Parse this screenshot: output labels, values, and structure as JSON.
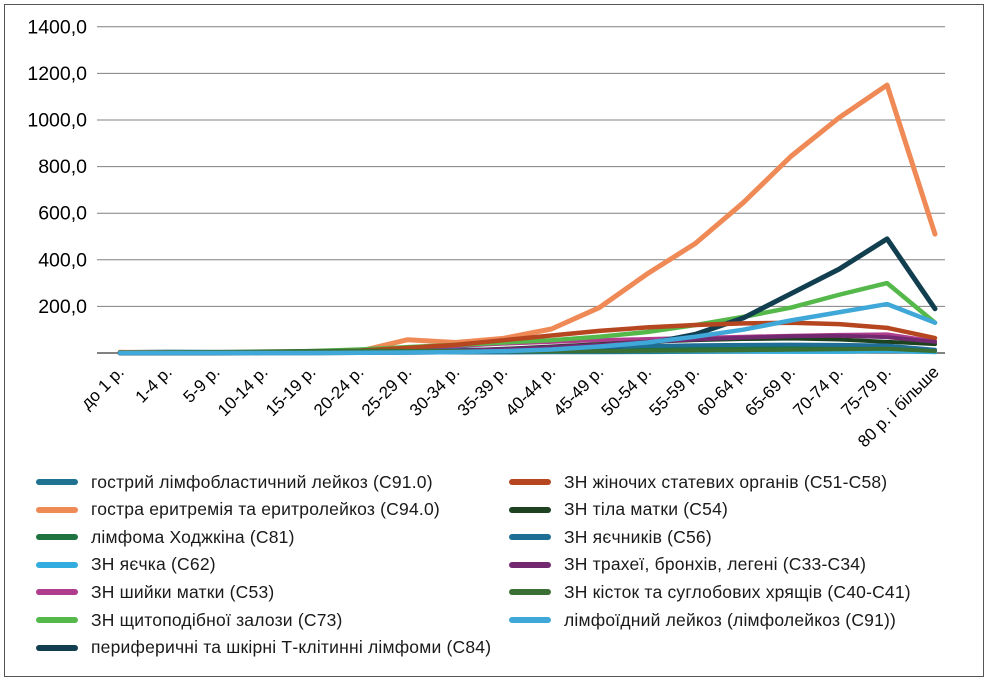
{
  "figure": {
    "kind": "multi-series line chart of incidence by age group",
    "background": "#ffffff",
    "frame_color": "#555555",
    "gridline_color": "#808080",
    "axis_color": "#595959"
  },
  "chart_data": {
    "type": "line",
    "title": "",
    "xlabel": "",
    "ylabel": "",
    "ylim": [
      0,
      1400
    ],
    "grid": "horizontal",
    "legend_position": "bottom-two-columns",
    "y_ticks": [
      {
        "value": 1400,
        "label": "1400,0"
      },
      {
        "value": 1200,
        "label": "1200,0"
      },
      {
        "value": 1000,
        "label": "1000,0"
      },
      {
        "value": 800,
        "label": "800,0"
      },
      {
        "value": 600,
        "label": "600,0"
      },
      {
        "value": 400,
        "label": "400,0"
      },
      {
        "value": 200,
        "label": "200,0"
      }
    ],
    "categories": [
      "до 1 р.",
      "1-4 р.",
      "5-9 р.",
      "10-14 р.",
      "15-19 р.",
      "20-24 р.",
      "25-29 р.",
      "30-34 р.",
      "35-39 р.",
      "40-44 р.",
      "45-49 р.",
      "50-54 р.",
      "55-59 р.",
      "60-64 р.",
      "65-69 р.",
      "70-74 р.",
      "75-79 р.",
      "80 р. і більше"
    ],
    "series": [
      {
        "name": "гострий лімфобластичний лейкоз (С91.0)",
        "color": "#1F7391",
        "width": 4,
        "values": [
          4,
          6,
          5,
          3,
          3,
          3,
          2,
          2,
          2,
          3,
          3,
          4,
          5,
          6,
          7,
          8,
          10,
          5
        ]
      },
      {
        "name": "гостра еритремія та еритролейкоз (С94.0)",
        "color": "#EF8A57",
        "width": 5,
        "values": [
          3,
          2,
          2,
          2,
          3,
          8,
          57,
          45,
          63,
          103,
          195,
          340,
          470,
          645,
          845,
          1010,
          1150,
          510
        ]
      },
      {
        "name": "лімфома Ходжкіна (С81)",
        "color": "#1E7340",
        "width": 4,
        "values": [
          2,
          2,
          3,
          4,
          8,
          12,
          14,
          15,
          14,
          13,
          14,
          15,
          17,
          19,
          21,
          22,
          18,
          9
        ]
      },
      {
        "name": "ЗН яєчка (С62)",
        "color": "#33ADE0",
        "width": 4,
        "values": [
          1,
          2,
          2,
          3,
          6,
          12,
          15,
          14,
          12,
          10,
          9,
          8,
          7,
          6,
          5,
          5,
          8,
          3
        ]
      },
      {
        "name": "ЗН шийки матки (С53)",
        "color": "#B03C8E",
        "width": 4,
        "values": [
          0,
          0,
          0,
          1,
          3,
          10,
          20,
          30,
          40,
          48,
          55,
          60,
          65,
          70,
          74,
          78,
          80,
          50
        ]
      },
      {
        "name": "ЗН щитоподібної залози (С73)",
        "color": "#55B84B",
        "width": 4.5,
        "values": [
          0,
          1,
          2,
          4,
          8,
          15,
          25,
          35,
          45,
          55,
          70,
          90,
          120,
          155,
          195,
          250,
          300,
          130
        ]
      },
      {
        "name": "периферичні та шкірні Т-клітинні лімфоми (С84)",
        "color": "#123F4F",
        "width": 5,
        "values": [
          0,
          0,
          0,
          1,
          1,
          2,
          3,
          5,
          8,
          12,
          20,
          40,
          80,
          150,
          255,
          360,
          490,
          190
        ]
      },
      {
        "name": "ЗН жіночих статевих органів (С51-С58)",
        "color": "#B5461F",
        "width": 4.5,
        "values": [
          1,
          1,
          1,
          2,
          4,
          10,
          22,
          35,
          55,
          75,
          95,
          110,
          120,
          127,
          130,
          124,
          108,
          64
        ]
      },
      {
        "name": "ЗН тіла матки (С54)",
        "color": "#1D4220",
        "width": 4,
        "values": [
          0,
          0,
          0,
          0,
          1,
          2,
          5,
          10,
          18,
          28,
          38,
          48,
          55,
          60,
          62,
          58,
          48,
          38
        ]
      },
      {
        "name": "ЗН яєчників (С56)",
        "color": "#1F6E96",
        "width": 4,
        "values": [
          0,
          1,
          1,
          2,
          3,
          5,
          8,
          12,
          16,
          20,
          25,
          30,
          33,
          35,
          36,
          35,
          32,
          14
        ]
      },
      {
        "name": "ЗН трахеї, бронхів, легені (С33-С34)",
        "color": "#73296F",
        "width": 4,
        "values": [
          0,
          0,
          0,
          1,
          1,
          3,
          6,
          10,
          16,
          25,
          35,
          48,
          58,
          66,
          72,
          74,
          68,
          48
        ]
      },
      {
        "name": "ЗН кісток та суглобових хрящів (С40-С41)",
        "color": "#3A7034",
        "width": 4,
        "values": [
          3,
          4,
          5,
          7,
          9,
          10,
          9,
          8,
          7,
          7,
          8,
          9,
          10,
          12,
          14,
          16,
          18,
          8
        ]
      },
      {
        "name": "лімфоїдний лейкоз (лімфолейкоз (С91))",
        "color": "#3FA8D8",
        "width": 4.5,
        "values": [
          0,
          0,
          0,
          0,
          0,
          1,
          2,
          4,
          8,
          15,
          28,
          45,
          70,
          100,
          140,
          175,
          210,
          130
        ]
      }
    ],
    "legend_columns": [
      [
        0,
        1,
        2,
        3,
        4,
        5,
        6
      ],
      [
        7,
        8,
        9,
        10,
        11,
        12
      ]
    ]
  }
}
